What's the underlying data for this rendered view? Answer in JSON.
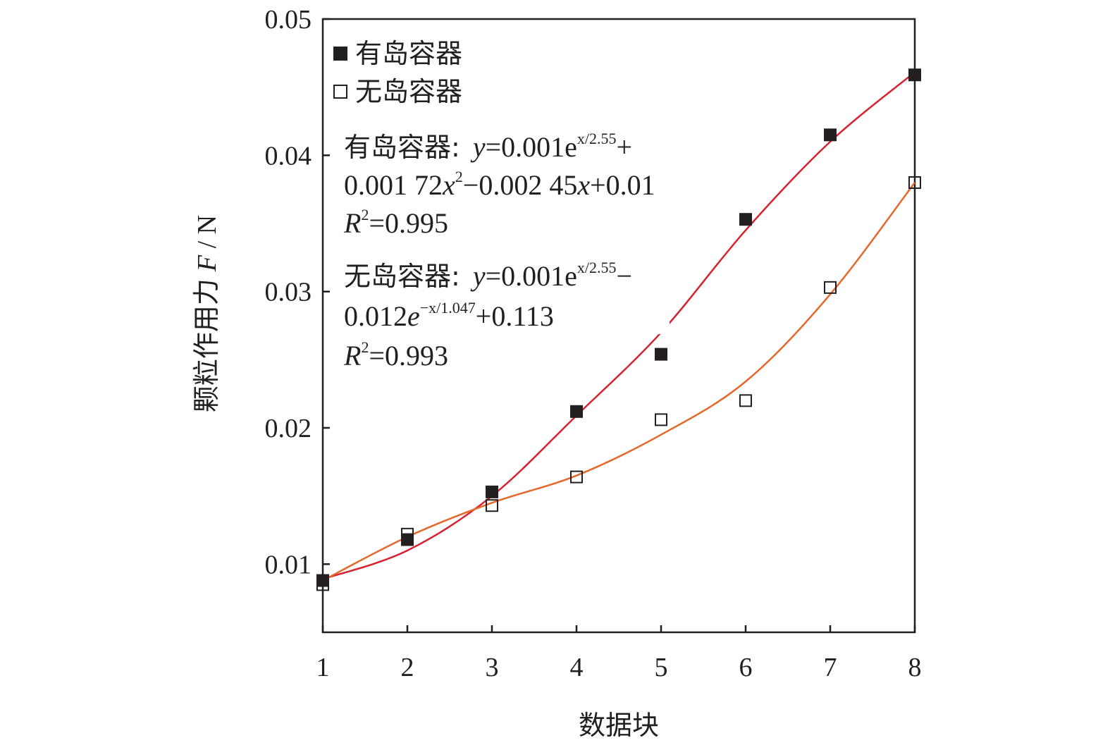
{
  "chart_data": {
    "type": "scatter",
    "title": "",
    "xlabel": "数据块",
    "ylabel_text": "颗粒作用力",
    "ylabel_var": "F",
    "ylabel_unit": " / N",
    "xlim": [
      1,
      8
    ],
    "ylim": [
      0.005,
      0.05
    ],
    "xticks": [
      "1",
      "2",
      "3",
      "4",
      "5",
      "6",
      "7",
      "8"
    ],
    "yticks": [
      "0.01",
      "0.02",
      "0.03",
      "0.04",
      "0.05"
    ],
    "grid": false,
    "legend_position": "top-left",
    "series": [
      {
        "name": "有岛容器",
        "marker": "filled-square",
        "color": "#231f20",
        "fit_color": "#d6222f",
        "x": [
          1,
          2,
          3,
          4,
          5,
          6,
          7,
          8
        ],
        "y": [
          0.0088,
          0.0118,
          0.0153,
          0.0212,
          0.0254,
          0.0353,
          0.0415,
          0.0459
        ]
      },
      {
        "name": "无岛容器",
        "marker": "hollow-square",
        "color": "#231f20",
        "fit_color": "#e5672a",
        "x": [
          1,
          2,
          3,
          4,
          5,
          6,
          7,
          8
        ],
        "y": [
          0.0085,
          0.0122,
          0.0143,
          0.0164,
          0.0206,
          0.022,
          0.0303,
          0.038
        ]
      }
    ],
    "annotations": {
      "eq1_label": "有岛容器:",
      "eq1_line1_a": "y",
      "eq1_line1_b": "=0.001e",
      "eq1_line1_sup": "x/2.55",
      "eq1_line1_c": "+",
      "eq1_line2_a": "0.001 72",
      "eq1_line2_b": "x",
      "eq1_line2_sup": "2",
      "eq1_line2_c": "−0.002 45",
      "eq1_line2_d": "x",
      "eq1_line2_e": "+0.01",
      "eq1_r2_var": "R",
      "eq1_r2_sup": "2",
      "eq1_r2_val": "=0.995",
      "eq2_label": "无岛容器:",
      "eq2_line1_a": "y",
      "eq2_line1_b": "=0.001e",
      "eq2_line1_sup": "x/2.55",
      "eq2_line1_c": "−",
      "eq2_line2_a": "0.012",
      "eq2_line2_b": "e",
      "eq2_line2_sup": "−x/1.047",
      "eq2_line2_c": "+0.113",
      "eq2_r2_var": "R",
      "eq2_r2_sup": "2",
      "eq2_r2_val": "=0.993"
    }
  }
}
